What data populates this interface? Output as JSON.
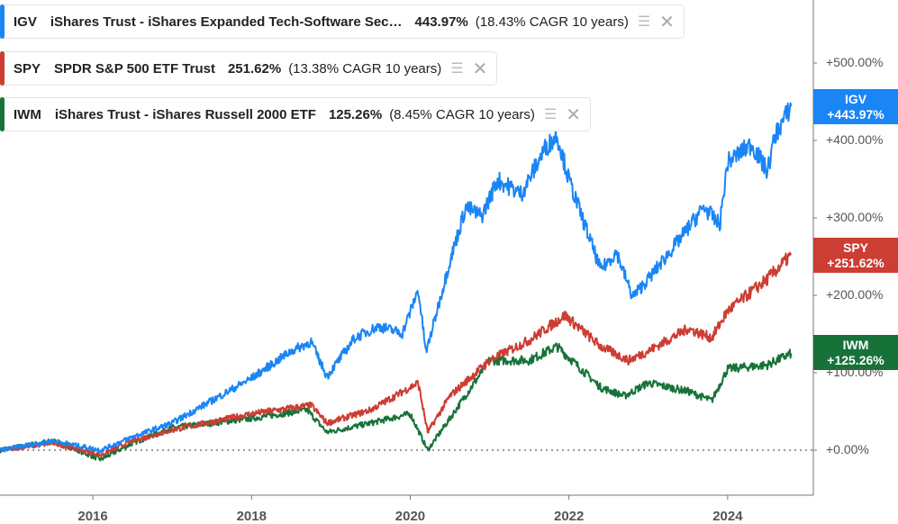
{
  "chart_data": {
    "type": "line",
    "title": "",
    "xlabel": "",
    "ylabel": "",
    "xlim": [
      2014.83,
      2025.1
    ],
    "ylim": [
      -58,
      582
    ],
    "x_ticks": [
      "2016",
      "2018",
      "2020",
      "2022",
      "2024"
    ],
    "x_tick_values": [
      2016,
      2018,
      2020,
      2022,
      2024
    ],
    "y_ticks": [
      "+0.00%",
      "+100.00%",
      "+200.00%",
      "+300.00%",
      "+400.00%",
      "+500.00%"
    ],
    "y_tick_values": [
      0,
      100,
      200,
      300,
      400,
      500
    ],
    "baseline": 0,
    "series": [
      {
        "ticker": "IGV",
        "name": "iShares Trust - iShares Expanded Tech-Software Sec…",
        "return": "443.97%",
        "cagr": "(18.43% CAGR 10 years)",
        "tag": "+443.97%",
        "color": "#1a85f5",
        "points": [
          [
            2014.83,
            0
          ],
          [
            2015.5,
            12
          ],
          [
            2016.1,
            0
          ],
          [
            2016.5,
            17
          ],
          [
            2017.0,
            35
          ],
          [
            2017.5,
            64
          ],
          [
            2018.0,
            93
          ],
          [
            2018.5,
            128
          ],
          [
            2018.75,
            140
          ],
          [
            2018.95,
            95
          ],
          [
            2019.3,
            145
          ],
          [
            2019.6,
            160
          ],
          [
            2019.9,
            151
          ],
          [
            2020.1,
            207
          ],
          [
            2020.2,
            126
          ],
          [
            2020.5,
            244
          ],
          [
            2020.7,
            314
          ],
          [
            2020.9,
            302
          ],
          [
            2021.1,
            349
          ],
          [
            2021.4,
            331
          ],
          [
            2021.7,
            390
          ],
          [
            2021.85,
            407
          ],
          [
            2022.0,
            349
          ],
          [
            2022.2,
            291
          ],
          [
            2022.4,
            233
          ],
          [
            2022.6,
            256
          ],
          [
            2022.8,
            198
          ],
          [
            2023.0,
            221
          ],
          [
            2023.4,
            273
          ],
          [
            2023.7,
            314
          ],
          [
            2023.9,
            291
          ],
          [
            2024.0,
            372
          ],
          [
            2024.3,
            395
          ],
          [
            2024.5,
            360
          ],
          [
            2024.6,
            407
          ],
          [
            2024.8,
            444
          ]
        ]
      },
      {
        "ticker": "SPY",
        "name": "SPDR S&P 500 ETF Trust",
        "return": "251.62%",
        "cagr": "(13.38% CAGR 10 years)",
        "tag": "+251.62%",
        "color": "#cc3d33",
        "points": [
          [
            2014.83,
            0
          ],
          [
            2015.5,
            9
          ],
          [
            2016.1,
            -6
          ],
          [
            2016.5,
            12
          ],
          [
            2017.0,
            26
          ],
          [
            2018.0,
            47
          ],
          [
            2018.75,
            58
          ],
          [
            2018.95,
            35
          ],
          [
            2019.5,
            52
          ],
          [
            2020.1,
            87
          ],
          [
            2020.22,
            23
          ],
          [
            2020.5,
            70
          ],
          [
            2021.0,
            116
          ],
          [
            2021.5,
            142
          ],
          [
            2021.95,
            174
          ],
          [
            2022.4,
            134
          ],
          [
            2022.75,
            116
          ],
          [
            2023.0,
            128
          ],
          [
            2023.5,
            157
          ],
          [
            2023.8,
            145
          ],
          [
            2024.0,
            180
          ],
          [
            2024.5,
            221
          ],
          [
            2024.8,
            252
          ]
        ]
      },
      {
        "ticker": "IWM",
        "name": "iShares Trust - iShares Russell 2000 ETF",
        "return": "125.26%",
        "cagr": "(8.45% CAGR 10 years)",
        "tag": "+125.26%",
        "color": "#17723a",
        "points": [
          [
            2014.83,
            0
          ],
          [
            2015.5,
            12
          ],
          [
            2016.1,
            -12
          ],
          [
            2016.5,
            9
          ],
          [
            2017.0,
            29
          ],
          [
            2018.0,
            41
          ],
          [
            2018.7,
            52
          ],
          [
            2018.95,
            23
          ],
          [
            2019.5,
            35
          ],
          [
            2020.0,
            47
          ],
          [
            2020.22,
            0
          ],
          [
            2020.5,
            41
          ],
          [
            2021.0,
            116
          ],
          [
            2021.5,
            116
          ],
          [
            2021.85,
            134
          ],
          [
            2022.4,
            81
          ],
          [
            2022.7,
            70
          ],
          [
            2023.0,
            87
          ],
          [
            2023.5,
            76
          ],
          [
            2023.8,
            64
          ],
          [
            2024.0,
            105
          ],
          [
            2024.5,
            110
          ],
          [
            2024.8,
            125
          ]
        ]
      }
    ]
  }
}
